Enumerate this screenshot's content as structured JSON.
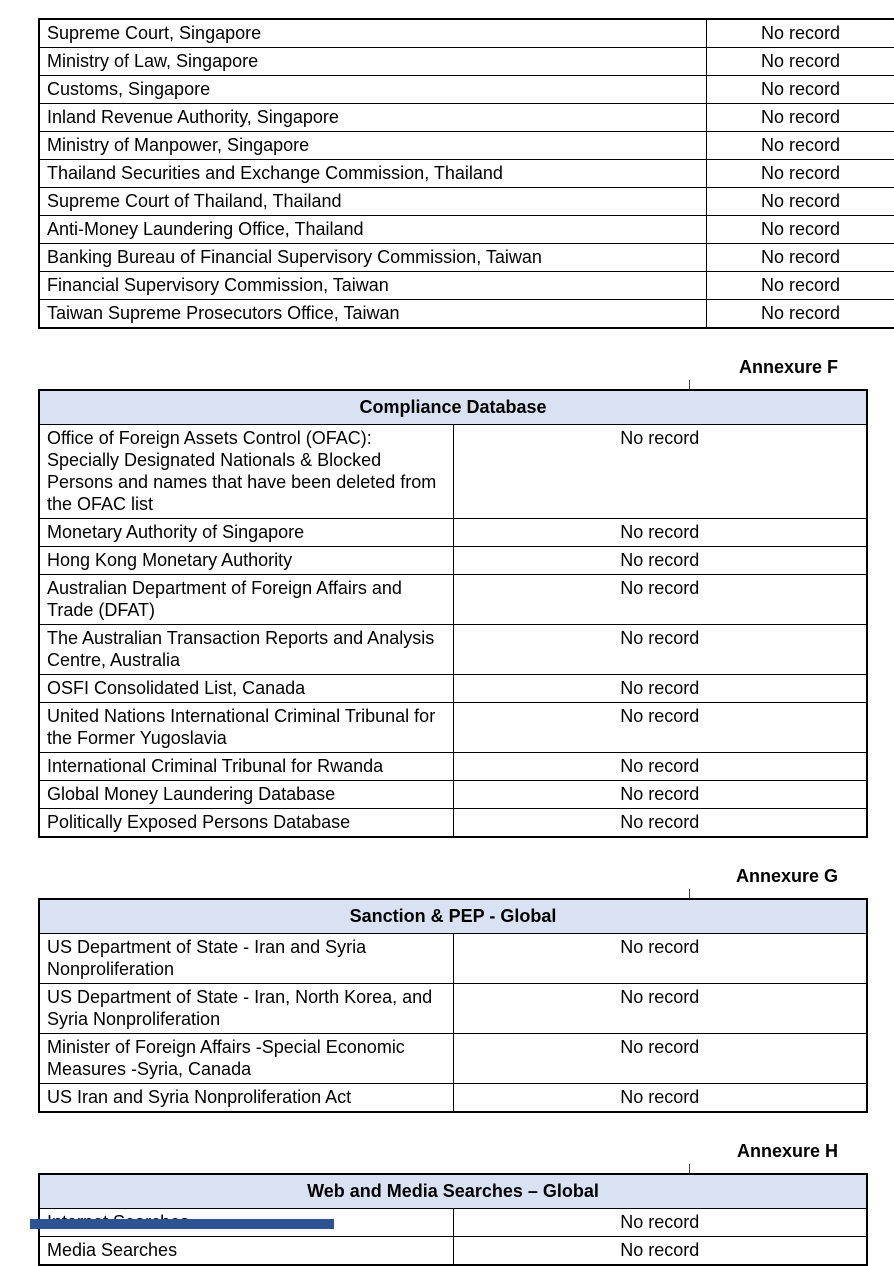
{
  "document_type": "screening-report-page",
  "colors": {
    "page_background": "#ffffff",
    "table_header_background": "#d9e2f3",
    "table_border": "#000000",
    "text": "#000000",
    "footer_bar": "#2e5395"
  },
  "tables": [
    {
      "id": "court-regulatory-sources",
      "annexure": null,
      "title": null,
      "rows": [
        {
          "source": "Supreme Court, Singapore",
          "result": "No record"
        },
        {
          "source": "Ministry of Law, Singapore",
          "result": "No record"
        },
        {
          "source": "Customs, Singapore",
          "result": "No record"
        },
        {
          "source": "Inland Revenue Authority, Singapore",
          "result": "No record"
        },
        {
          "source": "Ministry of Manpower, Singapore",
          "result": "No record"
        },
        {
          "source": "Thailand Securities and Exchange Commission, Thailand",
          "result": "No record"
        },
        {
          "source": "Supreme Court of Thailand, Thailand",
          "result": "No record"
        },
        {
          "source": "Anti-Money Laundering Office, Thailand",
          "result": "No record"
        },
        {
          "source": "Banking Bureau of Financial Supervisory Commission, Taiwan",
          "result": "No record"
        },
        {
          "source": "Financial Supervisory Commission, Taiwan",
          "result": "No record"
        },
        {
          "source": "Taiwan Supreme Prosecutors Office, Taiwan",
          "result": "No record"
        }
      ]
    },
    {
      "id": "compliance-database",
      "annexure": "Annexure F",
      "title": "Compliance Database",
      "rows": [
        {
          "source": "Office of Foreign Assets Control (OFAC): Specially Designated Nationals & Blocked Persons and names that have been deleted from the OFAC list",
          "result": "No record"
        },
        {
          "source": "Monetary Authority of Singapore",
          "result": "No record"
        },
        {
          "source": "Hong Kong Monetary Authority",
          "result": "No record"
        },
        {
          "source": "Australian Department of Foreign Affairs and Trade (DFAT)",
          "result": "No record"
        },
        {
          "source": "The Australian Transaction Reports and Analysis Centre, Australia",
          "result": "No record"
        },
        {
          "source": "OSFI Consolidated List, Canada",
          "result": "No record"
        },
        {
          "source": "United Nations International Criminal Tribunal for the Former Yugoslavia",
          "result": "No record"
        },
        {
          "source": "International Criminal Tribunal for Rwanda",
          "result": "No record"
        },
        {
          "source": "Global Money Laundering Database",
          "result": "No record"
        },
        {
          "source": "Politically Exposed Persons Database",
          "result": "No record"
        }
      ]
    },
    {
      "id": "sanction-pep-global",
      "annexure": "Annexure G",
      "title": "Sanction & PEP - Global",
      "rows": [
        {
          "source": "US Department of State - Iran and Syria Nonproliferation",
          "result": "No record"
        },
        {
          "source": "US Department of State - Iran, North Korea, and Syria Nonproliferation",
          "result": "No record"
        },
        {
          "source": "Minister of Foreign Affairs -Special Economic Measures -Syria, Canada",
          "result": "No record"
        },
        {
          "source": "US Iran and Syria Nonproliferation Act",
          "result": "No record"
        }
      ]
    },
    {
      "id": "web-media-searches-global",
      "annexure": "Annexure H",
      "title": "Web and Media Searches – Global",
      "rows": [
        {
          "source": "Internet Searches",
          "result": "No record"
        },
        {
          "source": "Media Searches",
          "result": "No record"
        }
      ]
    }
  ]
}
